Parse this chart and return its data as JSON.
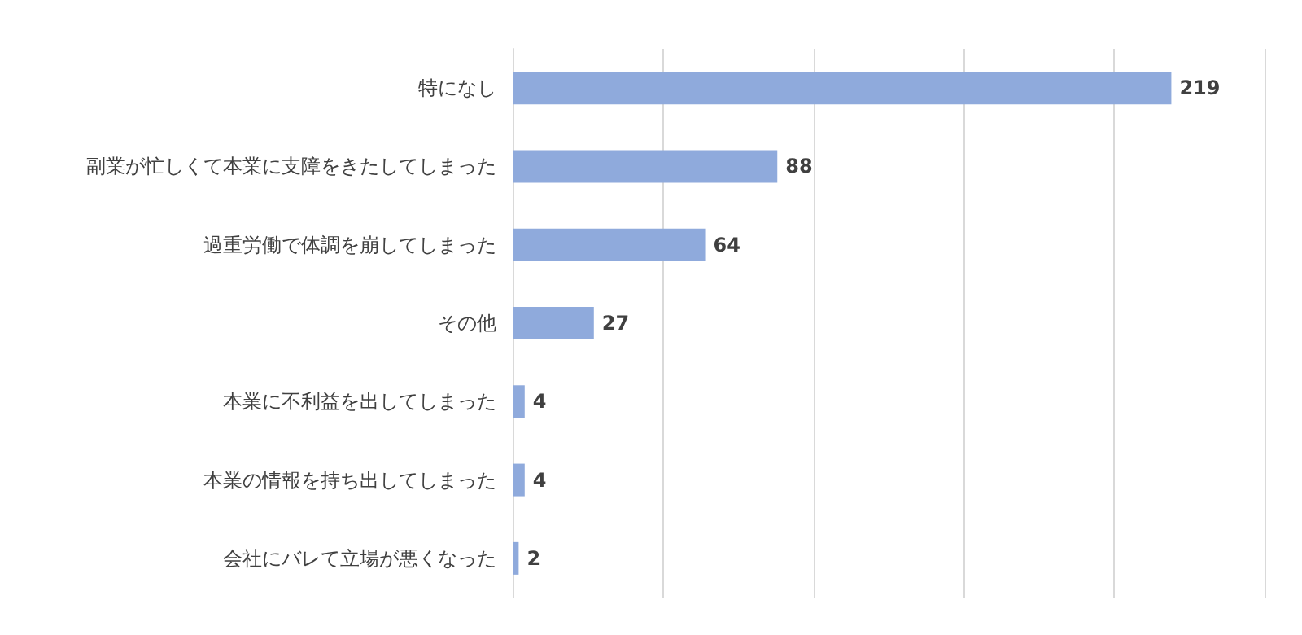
{
  "chart_data": {
    "type": "bar",
    "orientation": "horizontal",
    "categories": [
      "特になし",
      "副業が忙しくて本業に支障をきたしてしまった",
      "過重労働で体調を崩してしまった",
      "その他",
      "本業に不利益を出してしまった",
      "本業の情報を持ち出してしまった",
      "会社にバレて立場が悪くなった"
    ],
    "values": [
      219,
      88,
      64,
      27,
      4,
      4,
      2
    ],
    "color": "#8faadc",
    "xlim": [
      0,
      250
    ],
    "xticks": [
      {
        "value": 0,
        "label": null
      },
      {
        "value": 50,
        "label": null
      },
      {
        "value": 100,
        "label": null
      },
      {
        "value": 150,
        "label": null
      },
      {
        "value": 200,
        "label": null
      },
      {
        "value": 250,
        "label": null
      }
    ],
    "grid": "x",
    "tick_labels": "y",
    "data_labels": true
  }
}
